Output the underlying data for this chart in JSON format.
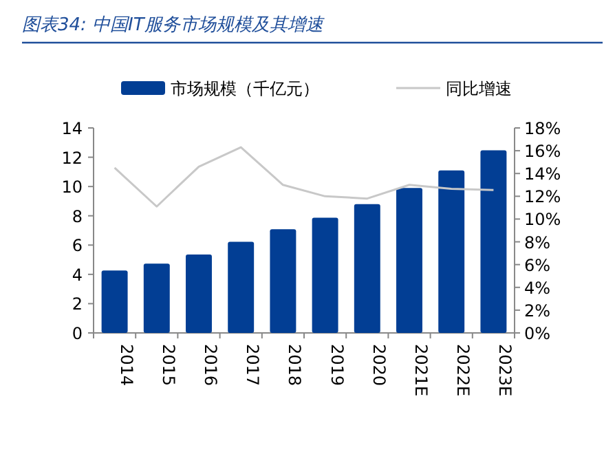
{
  "chart_data": {
    "type": "bar",
    "title": "图表34:  中国IT服务市场规模及其增速",
    "categories": [
      "2014",
      "2015",
      "2016",
      "2017",
      "2018",
      "2019",
      "2020",
      "2021E",
      "2022E",
      "2023E"
    ],
    "series": [
      {
        "name": "市场规模（千亿元）",
        "color": "#023e94",
        "values": [
          4.26,
          4.73,
          5.36,
          6.23,
          7.08,
          7.87,
          8.8,
          9.9,
          11.1,
          12.47
        ]
      },
      {
        "name": "同比增速",
        "type": "line",
        "axis": "y2",
        "color": "#c8c8c8",
        "values": [
          14.5,
          11.1,
          14.6,
          16.3,
          13.0,
          12.0,
          11.8,
          13.0,
          12.65,
          12.55
        ]
      }
    ],
    "ylim": [
      0,
      14
    ],
    "yticks": [
      0,
      2,
      4,
      6,
      8,
      10,
      12,
      14
    ],
    "y2lim": [
      0,
      18
    ],
    "y2ticks": [
      {
        "value": 0,
        "label": "0%"
      },
      {
        "value": 2,
        "label": "2%"
      },
      {
        "value": 4,
        "label": "4%"
      },
      {
        "value": 6,
        "label": "6%"
      },
      {
        "value": 8,
        "label": "8%"
      },
      {
        "value": 10,
        "label": "10%"
      },
      {
        "value": 12,
        "label": "12%"
      },
      {
        "value": 14,
        "label": "14%"
      },
      {
        "value": 16,
        "label": "16%"
      },
      {
        "value": 18,
        "label": "18%"
      }
    ],
    "legend": "top",
    "grid": false
  }
}
